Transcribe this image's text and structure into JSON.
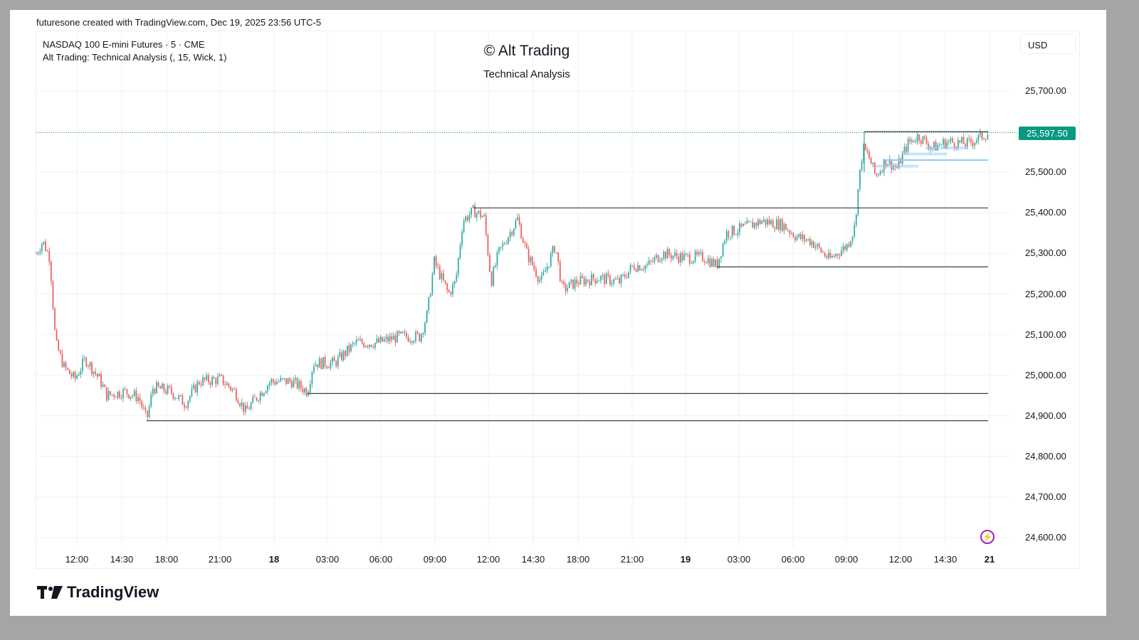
{
  "credit": "futuresone created with TradingView.com, Dec 19, 2025 23:56 UTC-5",
  "legend": {
    "symbol": "NASDAQ 100 E-mini Futures · 5 · CME",
    "indicator": "Alt Trading: Technical Analysis (, 15, Wick, 1)"
  },
  "watermark": {
    "title": "© Alt Trading",
    "subtitle": "Technical Analysis"
  },
  "currency": "USD",
  "last_price": "25,597.50",
  "colors": {
    "up": "#26a69a",
    "down": "#ef5350",
    "last_price": "#089981",
    "level_line": "#3b3f4a",
    "zone": "#90caf9",
    "bolt": "#9c27b0"
  },
  "y_axis": [
    "25,700.00",
    "25,500.00",
    "25,400.00",
    "25,300.00",
    "25,200.00",
    "25,100.00",
    "25,000.00",
    "24,900.00",
    "24,800.00",
    "24,700.00",
    "24,600.00"
  ],
  "x_axis": [
    {
      "label": "12:00",
      "bold": false
    },
    {
      "label": "14:30",
      "bold": false
    },
    {
      "label": "18:00",
      "bold": false
    },
    {
      "label": "21:00",
      "bold": false
    },
    {
      "label": "18",
      "bold": true
    },
    {
      "label": "03:00",
      "bold": false
    },
    {
      "label": "06:00",
      "bold": false
    },
    {
      "label": "09:00",
      "bold": false
    },
    {
      "label": "12:00",
      "bold": false
    },
    {
      "label": "14:30",
      "bold": false
    },
    {
      "label": "18:00",
      "bold": false
    },
    {
      "label": "21:00",
      "bold": false
    },
    {
      "label": "19",
      "bold": true
    },
    {
      "label": "03:00",
      "bold": false
    },
    {
      "label": "06:00",
      "bold": false
    },
    {
      "label": "09:00",
      "bold": false
    },
    {
      "label": "12:00",
      "bold": false
    },
    {
      "label": "14:30",
      "bold": false
    },
    {
      "label": "21",
      "bold": true
    }
  ],
  "brand": "TradingView",
  "chart_data": {
    "type": "candlestick",
    "title": "NASDAQ 100 E-mini Futures · 5 · CME",
    "subtitle": "Alt Trading: Technical Analysis (, 15, Wick, 1)",
    "xlabel": "",
    "ylabel": "USD",
    "ylim": [
      24580,
      25720
    ],
    "grid": true,
    "x": [
      "Dec 17 10:30",
      "12:00",
      "14:30",
      "16:30",
      "18:00",
      "21:00",
      "Dec 18 00:00",
      "03:00",
      "06:00",
      "09:00",
      "10:30",
      "11:30",
      "12:00",
      "13:30",
      "14:30",
      "16:00",
      "18:00",
      "21:00",
      "Dec 19 00:00",
      "03:00",
      "06:00",
      "08:00",
      "09:00",
      "09:30",
      "10:30",
      "12:00",
      "14:30",
      "16:00"
    ],
    "close_path": [
      25300,
      25050,
      24970,
      24950,
      24960,
      24980,
      24930,
      24990,
      24975,
      25040,
      25080,
      25100,
      25330,
      25380,
      25210,
      25390,
      25220,
      25250,
      25300,
      25270,
      25370,
      25380,
      25290,
      25560,
      25500,
      25580,
      25570,
      25597.5
    ],
    "last_price": 25597.5,
    "levels": [
      {
        "price": 25600,
        "from": "Dec 19 09:30",
        "to": "end",
        "type": "resistance"
      },
      {
        "price": 25412,
        "from": "Dec 18 11:30",
        "to": "end",
        "type": "resistance"
      },
      {
        "price": 25267,
        "from": "Dec 19 00:30",
        "to": "end",
        "type": "support"
      },
      {
        "price": 24955,
        "from": "Dec 18 01:30",
        "to": "end",
        "type": "support"
      },
      {
        "price": 24888,
        "from": "Dec 17 16:30",
        "to": "end",
        "type": "support"
      },
      {
        "price": 25530,
        "from": "Dec 19 12:00",
        "to": "end",
        "type": "zone"
      }
    ]
  }
}
